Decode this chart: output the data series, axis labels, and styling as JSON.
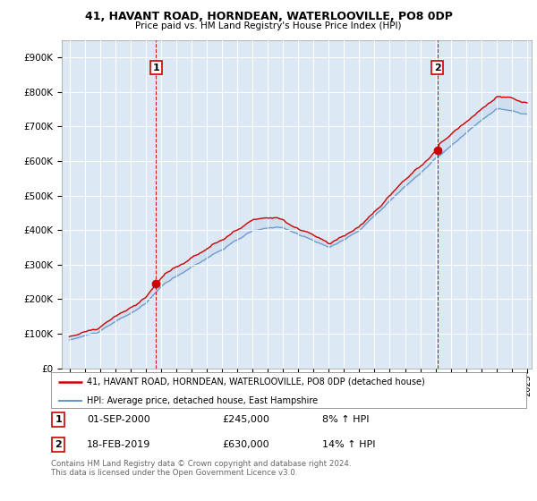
{
  "title1": "41, HAVANT ROAD, HORNDEAN, WATERLOOVILLE, PO8 0DP",
  "title2": "Price paid vs. HM Land Registry's House Price Index (HPI)",
  "legend_line1": "41, HAVANT ROAD, HORNDEAN, WATERLOOVILLE, PO8 0DP (detached house)",
  "legend_line2": "HPI: Average price, detached house, East Hampshire",
  "sale1_date": "01-SEP-2000",
  "sale1_price": "£245,000",
  "sale1_hpi": "8% ↑ HPI",
  "sale2_date": "18-FEB-2019",
  "sale2_price": "£630,000",
  "sale2_hpi": "14% ↑ HPI",
  "footer": "Contains HM Land Registry data © Crown copyright and database right 2024.\nThis data is licensed under the Open Government Licence v3.0.",
  "red_color": "#cc0000",
  "blue_color": "#6699cc",
  "fill_color": "#c5d8ed",
  "sale1_year": 2000.67,
  "sale1_value": 245000,
  "sale2_year": 2019.12,
  "sale2_value": 630000,
  "ylim_bottom": 0,
  "ylim_top": 950000,
  "xlim_left": 1994.5,
  "xlim_right": 2025.3,
  "background_color": "#dce9f5",
  "marker_color": "#cc0000",
  "marker_size": 6
}
